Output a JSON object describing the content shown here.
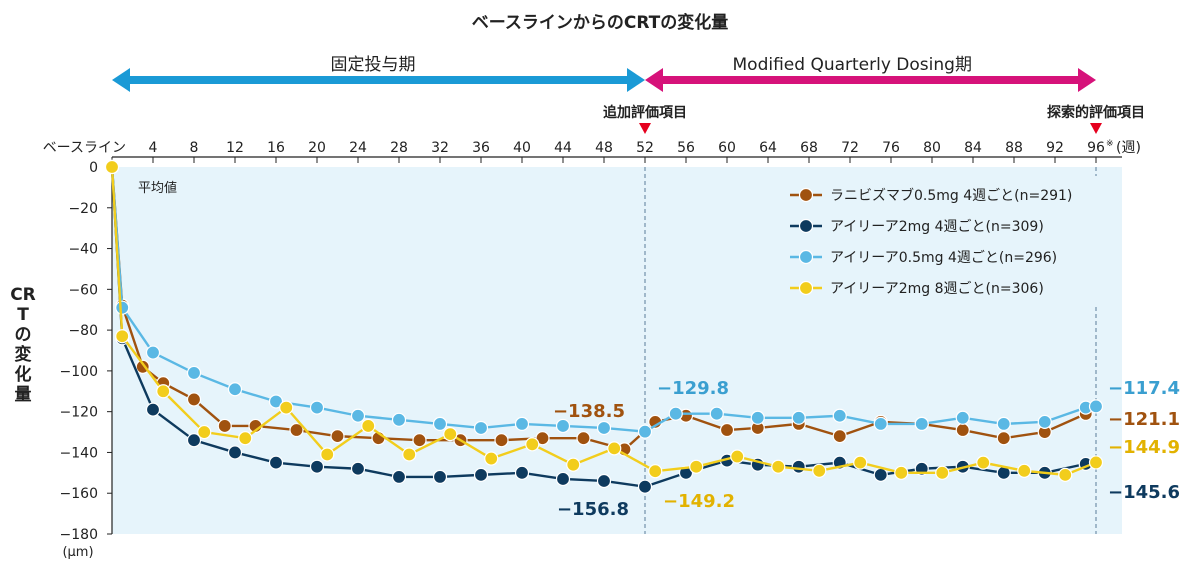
{
  "chart_data": {
    "type": "line",
    "title": "ベースラインからのCRTの変化量",
    "ylabel": "CRTの変化量",
    "yunit": "(µm)",
    "note": "平均値",
    "xunit_suffix": "(週)",
    "ylim": [
      -180,
      0
    ],
    "yticks": [
      0,
      -20,
      -40,
      -60,
      -80,
      -100,
      -120,
      -140,
      -160,
      -180
    ],
    "ytick_labels": [
      "0",
      "−20",
      "−40",
      "−60",
      "−80",
      "−100",
      "−120",
      "−140",
      "−160",
      "−180"
    ],
    "xlim": [
      0,
      98
    ],
    "xticks": [
      0,
      4,
      8,
      12,
      16,
      20,
      24,
      28,
      32,
      36,
      40,
      44,
      48,
      52,
      56,
      60,
      64,
      68,
      72,
      76,
      80,
      84,
      88,
      92,
      96
    ],
    "xtick_labels": [
      "ベースライン",
      "4",
      "8",
      "12",
      "16",
      "20",
      "24",
      "28",
      "32",
      "36",
      "40",
      "44",
      "48",
      "52",
      "56",
      "60",
      "64",
      "68",
      "72",
      "76",
      "80",
      "84",
      "88",
      "92",
      "96"
    ],
    "phases": [
      {
        "label": "固定投与期",
        "from": 0,
        "to": 52,
        "color": "#1a9ad6"
      },
      {
        "label": "Modified Quarterly Dosing期",
        "from": 52,
        "to": 96,
        "color": "#d6127a"
      }
    ],
    "markers": [
      {
        "x": 52,
        "label": "追加評価項目"
      },
      {
        "x": 96,
        "label": "探索的評価項目",
        "footnote": "※"
      }
    ],
    "series": [
      {
        "name": "ラニビズマブ0.5mg 4週ごと(n=291)",
        "color": "#a0520f",
        "label_color": "#a0520f",
        "x": [
          0,
          1,
          3,
          5,
          8,
          11,
          14,
          18,
          22,
          26,
          30,
          34,
          38,
          42,
          46,
          50,
          53,
          56,
          60,
          63,
          67,
          71,
          75,
          79,
          83,
          87,
          91,
          95
        ],
        "values": [
          0,
          -68,
          -98,
          -106,
          -114,
          -127,
          -127,
          -129,
          -132,
          -133,
          -134,
          -134,
          -134,
          -133,
          -133,
          -138.5,
          -125,
          -122,
          -129,
          -128,
          -126,
          -132,
          -125,
          -126,
          -129,
          -133,
          -130,
          -121.1
        ],
        "labels": [
          {
            "x": 52,
            "text": "−138.5"
          },
          {
            "x": 96,
            "text": "−121.1"
          }
        ]
      },
      {
        "name": "アイリーア2mg 4週ごと(n=309)",
        "color": "#0e3a5e",
        "label_color": "#0e3a5e",
        "x": [
          0,
          1,
          4,
          8,
          12,
          16,
          20,
          24,
          28,
          32,
          36,
          40,
          44,
          48,
          52,
          56,
          60,
          63,
          67,
          71,
          75,
          79,
          83,
          87,
          91,
          95
        ],
        "values": [
          0,
          -84,
          -119,
          -134,
          -140,
          -145,
          -147,
          -148,
          -152,
          -152,
          -151,
          -150,
          -153,
          -154,
          -156.8,
          -150,
          -144,
          -146,
          -147,
          -145,
          -151,
          -148,
          -147,
          -150,
          -150,
          -145.6
        ],
        "labels": [
          {
            "x": 52,
            "text": "−156.8"
          },
          {
            "x": 96,
            "text": "−145.6"
          }
        ]
      },
      {
        "name": "アイリーア0.5mg 4週ごと(n=296)",
        "color": "#5ab8e4",
        "label_color": "#3a9fd0",
        "x": [
          0,
          1,
          4,
          8,
          12,
          16,
          20,
          24,
          28,
          32,
          36,
          40,
          44,
          48,
          52,
          55,
          59,
          63,
          67,
          71,
          75,
          79,
          83,
          87,
          91,
          95,
          96
        ],
        "values": [
          0,
          -69,
          -91,
          -101,
          -109,
          -115,
          -118,
          -122,
          -124,
          -126,
          -128,
          -126,
          -127,
          -128,
          -129.8,
          -121,
          -121,
          -123,
          -123,
          -122,
          -126,
          -126,
          -123,
          -126,
          -125,
          -118,
          -117.4
        ],
        "labels": [
          {
            "x": 52,
            "text": "−129.8"
          },
          {
            "x": 96,
            "text": "−117.4"
          }
        ]
      },
      {
        "name": "アイリーア2mg 8週ごと(n=306)",
        "color": "#f2cd1c",
        "label_color": "#e2b200",
        "x": [
          0,
          1,
          5,
          9,
          13,
          17,
          21,
          25,
          29,
          33,
          37,
          41,
          45,
          49,
          53,
          57,
          61,
          65,
          69,
          73,
          77,
          81,
          85,
          89,
          93,
          96
        ],
        "values": [
          0,
          -83,
          -110,
          -130,
          -133,
          -118,
          -141,
          -127,
          -141,
          -131,
          -143,
          -136,
          -146,
          -138,
          -149.2,
          -147,
          -142,
          -147,
          -149,
          -145,
          -150,
          -150,
          -145,
          -149,
          -151,
          -144.9
        ],
        "labels": [
          {
            "x": 52,
            "text": "−149.2"
          },
          {
            "x": 96,
            "text": "−144.9"
          }
        ]
      }
    ],
    "legend_position": "top-right",
    "grid": false
  }
}
